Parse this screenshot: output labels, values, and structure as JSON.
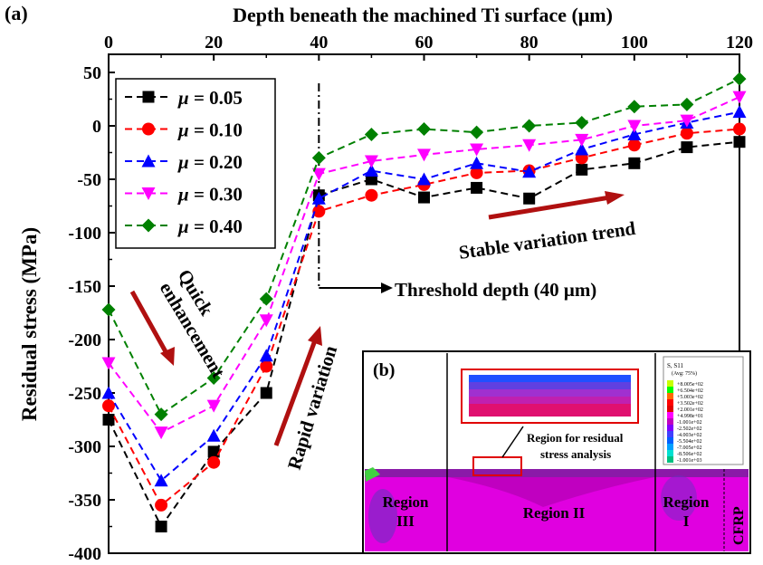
{
  "panel_label": "(a)",
  "inset_label": "(b)",
  "chart_data": {
    "type": "line",
    "title": "",
    "xlabel": "Depth beneath the machined Ti surface (μm)",
    "ylabel": "Residual stress (MPa)",
    "xlim": [
      0,
      120
    ],
    "ylim": [
      -400,
      50
    ],
    "x_axis_position": "top",
    "grid": false,
    "legend_position": "top-left",
    "xticks": [
      "0",
      "20",
      "40",
      "60",
      "80",
      "100",
      "120"
    ],
    "yticks": [
      "50",
      "0",
      "-50",
      "-100",
      "-150",
      "-200",
      "-250",
      "-300",
      "-350",
      "-400"
    ],
    "x": [
      0,
      10,
      20,
      30,
      40,
      50,
      60,
      70,
      80,
      90,
      100,
      110,
      120
    ],
    "series": [
      {
        "name": "μ = 0.05",
        "legend_symbol": "μ",
        "legend_value": " = 0.05",
        "color": "#000000",
        "marker": "square",
        "values": [
          -275,
          -375,
          -305,
          -250,
          -65,
          -50,
          -67,
          -58,
          -68,
          -41,
          -35,
          -20,
          -15
        ]
      },
      {
        "name": "μ = 0.10",
        "legend_symbol": "μ",
        "legend_value": " = 0.10",
        "color": "#ff0000",
        "marker": "circle",
        "values": [
          -262,
          -355,
          -315,
          -225,
          -80,
          -65,
          -55,
          -44,
          -42,
          -30,
          -18,
          -7,
          -3
        ]
      },
      {
        "name": "μ = 0.20",
        "legend_symbol": "μ",
        "legend_value": " = 0.20",
        "color": "#0000ff",
        "marker": "triangle-up",
        "values": [
          -250,
          -332,
          -290,
          -215,
          -68,
          -42,
          -50,
          -35,
          -43,
          -22,
          -8,
          3,
          13
        ]
      },
      {
        "name": "μ = 0.30",
        "legend_symbol": "μ",
        "legend_value": " = 0.30",
        "color": "#ff00ff",
        "marker": "triangle-down",
        "values": [
          -222,
          -287,
          -262,
          -182,
          -45,
          -33,
          -27,
          -22,
          -18,
          -13,
          0,
          5,
          27
        ]
      },
      {
        "name": "μ = 0.40",
        "legend_symbol": "μ",
        "legend_value": " = 0.40",
        "color": "#008000",
        "marker": "diamond",
        "values": [
          -172,
          -270,
          -236,
          -162,
          -30,
          -8,
          -3,
          -6,
          0,
          3,
          18,
          20,
          44
        ]
      }
    ],
    "threshold_depth": 40,
    "annotations": {
      "quick_1": "Quick",
      "quick_2": "enhancement",
      "rapid": "Rapid variation",
      "threshold": "Threshold depth (40 μm)",
      "stable": "Stable variation trend"
    }
  },
  "inset": {
    "region_label": "Region for residual",
    "region_label_2": "stress analysis",
    "region_1": "Region",
    "region_1b": "I",
    "region_2": "Region II",
    "region_3": "Region",
    "region_3b": "III",
    "cfrp": "CFRP",
    "legend_title_1": "S, S11",
    "legend_title_2": "(Avg: 75%)",
    "legend_values": [
      "+8.005e+02",
      "+6.504e+02",
      "+5.003e+02",
      "+3.502e+02",
      "+2.001e+02",
      "+4.998e+01",
      "-1.001e+02",
      "-2.502e+02",
      "-4.003e+02",
      "-5.504e+02",
      "-7.005e+02",
      "-8.506e+02",
      "-1.001e+03"
    ],
    "legend_colors": [
      "#c8ff00",
      "#00ff00",
      "#ff6a00",
      "#ff0000",
      "#e00000",
      "#ff00ff",
      "#c000c0",
      "#8000ff",
      "#4040ff",
      "#0060ff",
      "#00a0ff",
      "#00e0d0",
      "#00c080"
    ]
  }
}
